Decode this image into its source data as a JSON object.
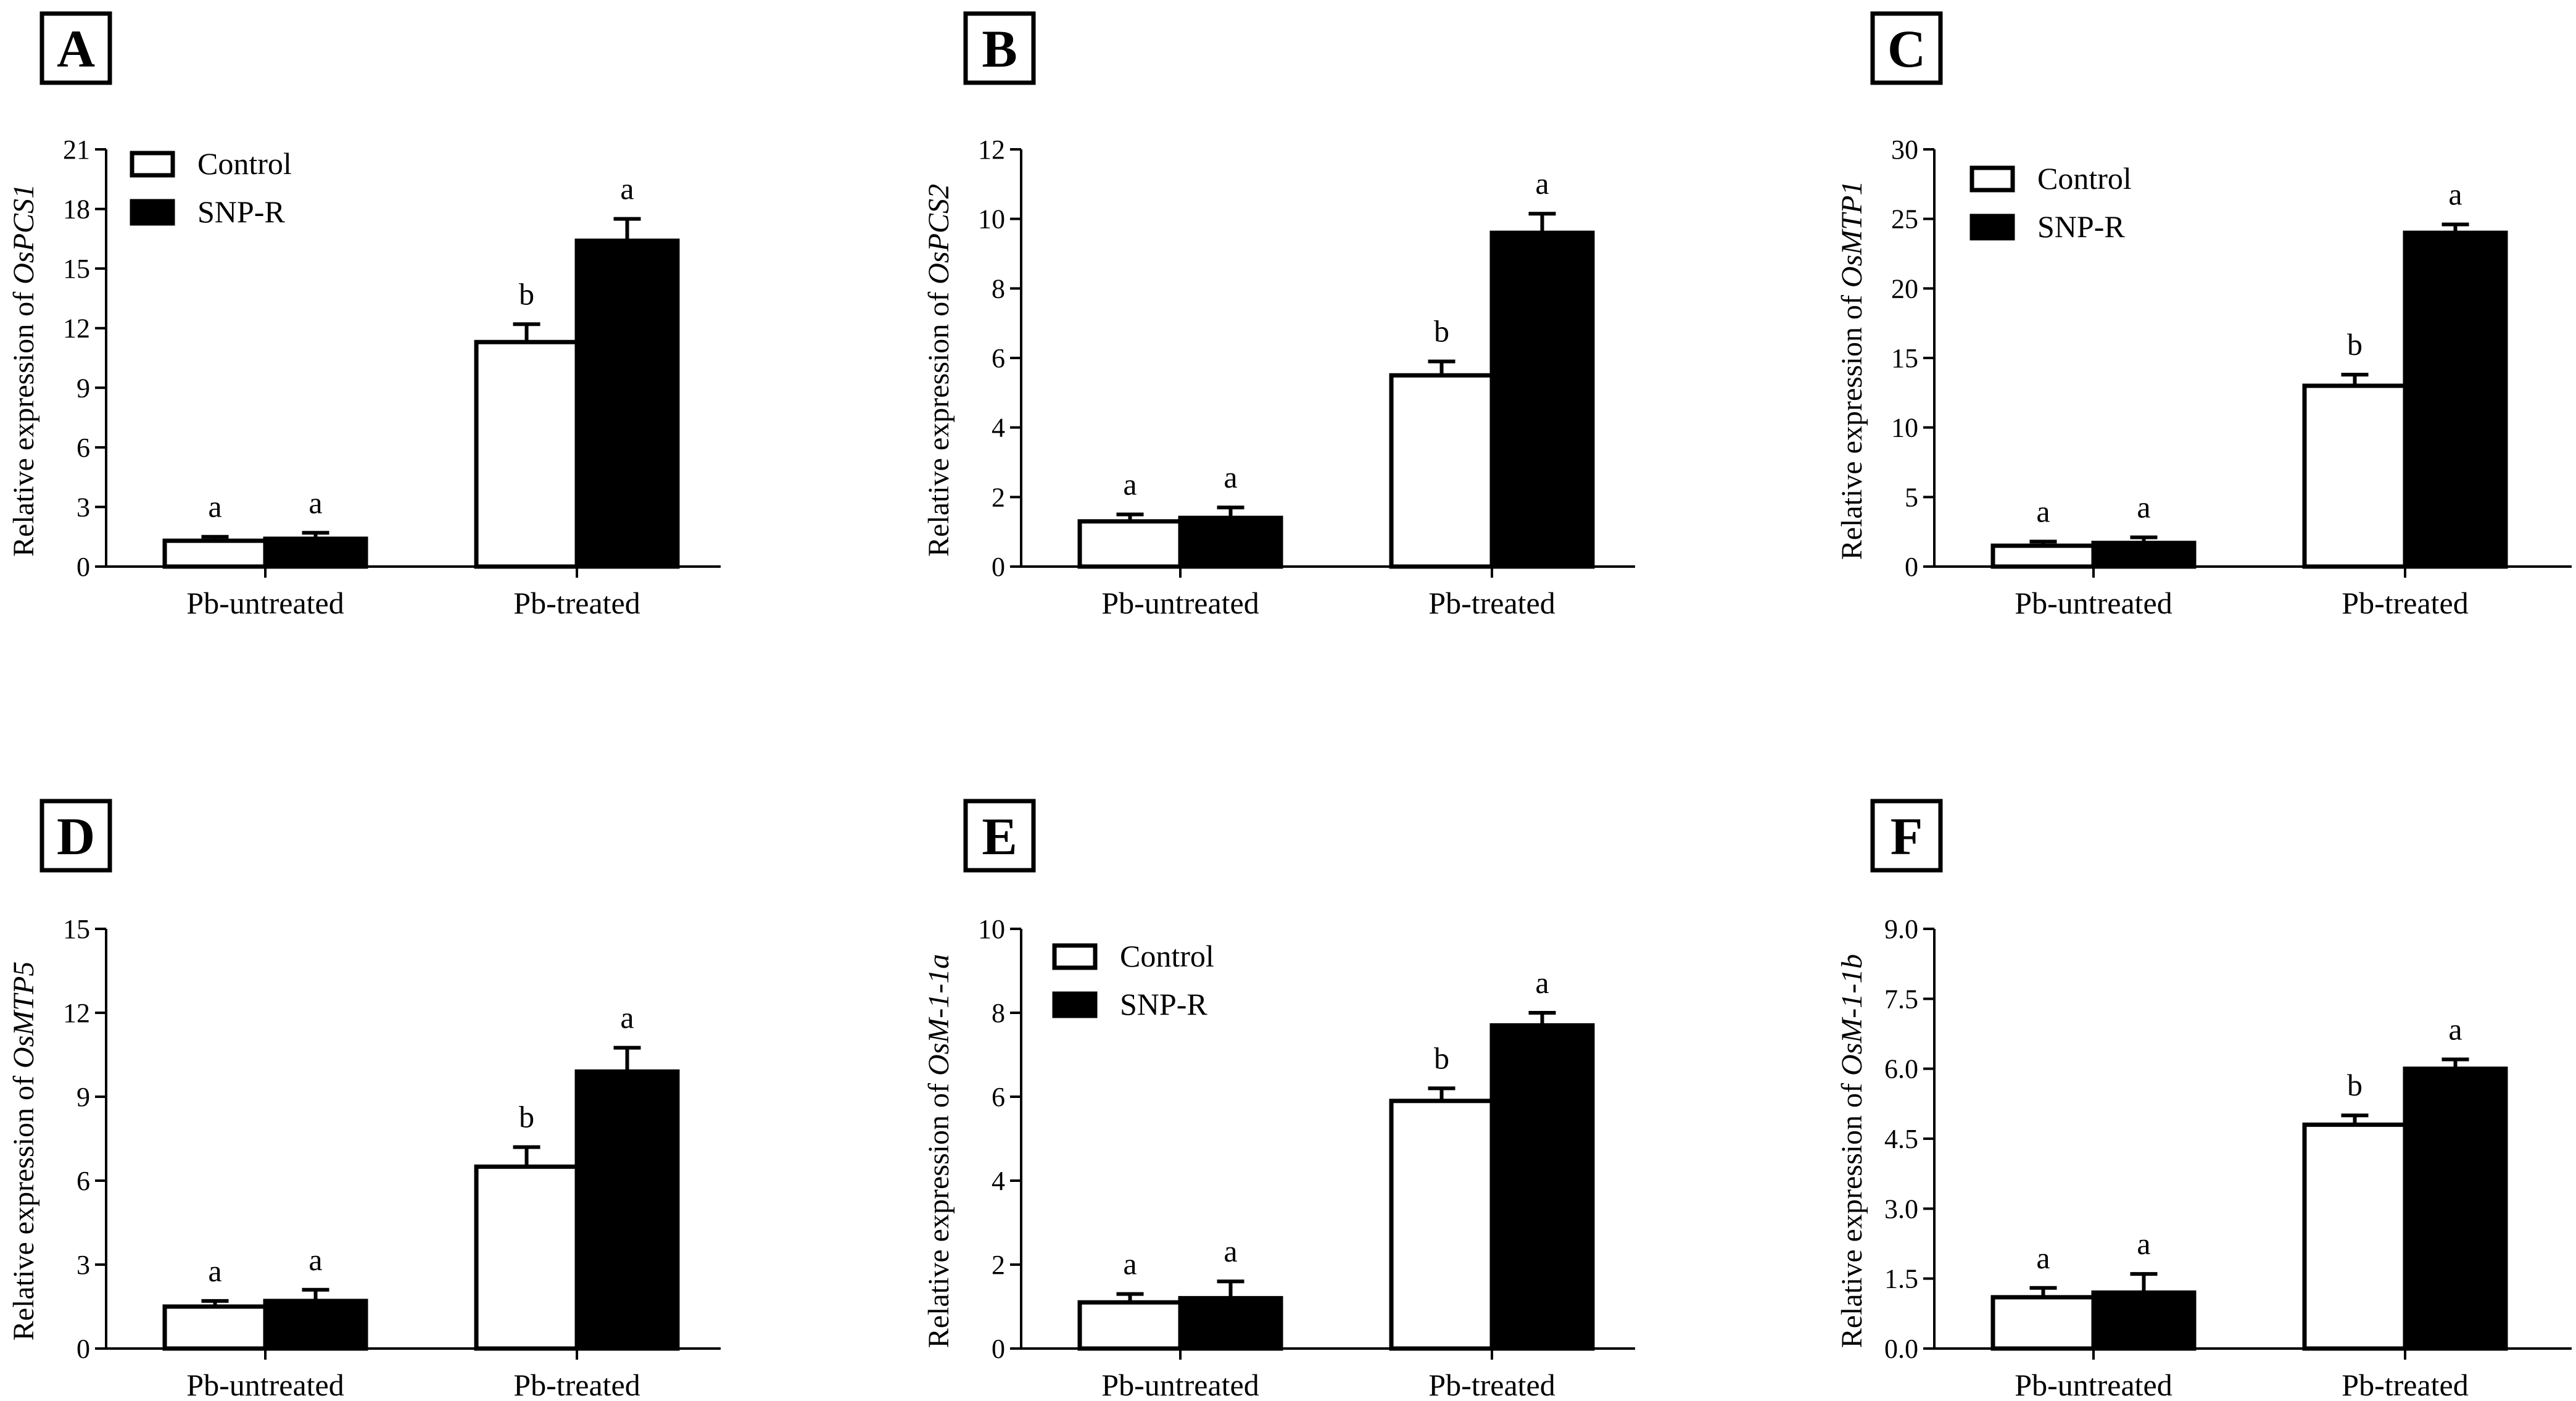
{
  "figure": {
    "legend": {
      "series": [
        "Control",
        "SNP-R"
      ]
    },
    "series_colors": {
      "Control": "#ffffff",
      "SNP-R": "#000000"
    }
  },
  "chart_data": [
    {
      "panel": "A",
      "type": "bar",
      "ylabel": "Relative expression of",
      "gene": "OsPCS1",
      "categories": [
        "Pb-untreated",
        "Pb-treated"
      ],
      "ylim": [
        0,
        21
      ],
      "yticks": [
        "0",
        "3",
        "6",
        "9",
        "12",
        "15",
        "18",
        "21"
      ],
      "show_legend": true,
      "series": [
        {
          "name": "Control",
          "values": [
            1.3,
            11.3
          ],
          "errors": [
            0.2,
            0.9
          ],
          "labels": [
            "a",
            "b"
          ]
        },
        {
          "name": "SNP-R",
          "values": [
            1.4,
            16.4
          ],
          "errors": [
            0.3,
            1.1
          ],
          "labels": [
            "a",
            "a"
          ]
        }
      ]
    },
    {
      "panel": "B",
      "type": "bar",
      "ylabel": "Relative expression of",
      "gene": "OsPCS2",
      "categories": [
        "Pb-untreated",
        "Pb-treated"
      ],
      "ylim": [
        0,
        12
      ],
      "yticks": [
        "0",
        "2",
        "4",
        "6",
        "8",
        "10",
        "12"
      ],
      "show_legend": false,
      "series": [
        {
          "name": "Control",
          "values": [
            1.3,
            5.5
          ],
          "errors": [
            0.2,
            0.4
          ],
          "labels": [
            "a",
            "b"
          ]
        },
        {
          "name": "SNP-R",
          "values": [
            1.4,
            9.6
          ],
          "errors": [
            0.3,
            0.55
          ],
          "labels": [
            "a",
            "a"
          ]
        }
      ]
    },
    {
      "panel": "C",
      "type": "bar",
      "ylabel": "Relative expression of",
      "gene": "OsMTP1",
      "categories": [
        "Pb-untreated",
        "Pb-treated"
      ],
      "ylim": [
        0,
        30
      ],
      "yticks": [
        "0",
        "5",
        "10",
        "15",
        "20",
        "25",
        "30"
      ],
      "show_legend": true,
      "series": [
        {
          "name": "Control",
          "values": [
            1.5,
            13.0
          ],
          "errors": [
            0.3,
            0.8
          ],
          "labels": [
            "a",
            "b"
          ]
        },
        {
          "name": "SNP-R",
          "values": [
            1.7,
            24.0
          ],
          "errors": [
            0.4,
            0.6
          ],
          "labels": [
            "a",
            "a"
          ]
        }
      ]
    },
    {
      "panel": "D",
      "type": "bar",
      "ylabel": "Relative expression of",
      "gene": "OsMTP5",
      "categories": [
        "Pb-untreated",
        "Pb-treated"
      ],
      "ylim": [
        0,
        15
      ],
      "yticks": [
        "0",
        "3",
        "6",
        "9",
        "12",
        "15"
      ],
      "show_legend": false,
      "series": [
        {
          "name": "Control",
          "values": [
            1.5,
            6.5
          ],
          "errors": [
            0.2,
            0.7
          ],
          "labels": [
            "a",
            "b"
          ]
        },
        {
          "name": "SNP-R",
          "values": [
            1.7,
            9.9
          ],
          "errors": [
            0.4,
            0.85
          ],
          "labels": [
            "a",
            "a"
          ]
        }
      ]
    },
    {
      "panel": "E",
      "type": "bar",
      "ylabel": "Relative expression of",
      "gene": "OsM-1-1a",
      "categories": [
        "Pb-untreated",
        "Pb-treated"
      ],
      "ylim": [
        0,
        10
      ],
      "yticks": [
        "0",
        "2",
        "4",
        "6",
        "8",
        "10"
      ],
      "show_legend": true,
      "series": [
        {
          "name": "Control",
          "values": [
            1.1,
            5.9
          ],
          "errors": [
            0.2,
            0.3
          ],
          "labels": [
            "a",
            "b"
          ]
        },
        {
          "name": "SNP-R",
          "values": [
            1.2,
            7.7
          ],
          "errors": [
            0.4,
            0.3
          ],
          "labels": [
            "a",
            "a"
          ]
        }
      ]
    },
    {
      "panel": "F",
      "type": "bar",
      "ylabel": "Relative expression of",
      "gene": "OsM-1-1b",
      "categories": [
        "Pb-untreated",
        "Pb-treated"
      ],
      "ylim": [
        0,
        9
      ],
      "yticks": [
        "0.0",
        "1.5",
        "3.0",
        "4.5",
        "6.0",
        "7.5",
        "9.0"
      ],
      "show_legend": false,
      "series": [
        {
          "name": "Control",
          "values": [
            1.1,
            4.8
          ],
          "errors": [
            0.2,
            0.2
          ],
          "labels": [
            "a",
            "b"
          ]
        },
        {
          "name": "SNP-R",
          "values": [
            1.2,
            6.0
          ],
          "errors": [
            0.4,
            0.2
          ],
          "labels": [
            "a",
            "a"
          ]
        }
      ]
    }
  ]
}
